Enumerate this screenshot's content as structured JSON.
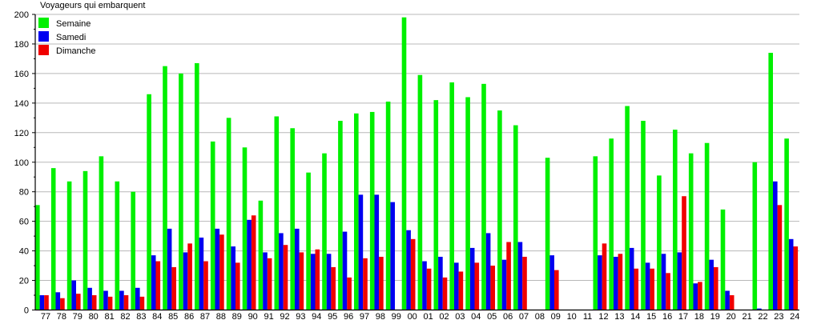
{
  "chart_data": {
    "type": "bar",
    "title": "Voyageurs qui embarquent",
    "xlabel": "",
    "ylabel": "",
    "ylim": [
      0,
      200
    ],
    "yticks": [
      0,
      20,
      40,
      60,
      80,
      100,
      120,
      140,
      160,
      180,
      200
    ],
    "grid": true,
    "legend_position": "top-left",
    "categories": [
      "77",
      "78",
      "79",
      "80",
      "81",
      "82",
      "83",
      "84",
      "85",
      "86",
      "87",
      "88",
      "89",
      "90",
      "91",
      "92",
      "93",
      "94",
      "95",
      "96",
      "97",
      "98",
      "99",
      "00",
      "01",
      "02",
      "03",
      "04",
      "05",
      "06",
      "07",
      "08",
      "09",
      "10",
      "11",
      "12",
      "13",
      "14",
      "15",
      "16",
      "17",
      "18",
      "19",
      "20",
      "21",
      "22",
      "23",
      "24"
    ],
    "series": [
      {
        "name": "Semaine",
        "color": "#00f000",
        "values": [
          71,
          96,
          87,
          94,
          104,
          87,
          80,
          146,
          165,
          160,
          167,
          114,
          130,
          110,
          74,
          131,
          123,
          93,
          106,
          128,
          133,
          134,
          141,
          198,
          159,
          142,
          154,
          144,
          153,
          135,
          125,
          0,
          103,
          0,
          0,
          104,
          116,
          138,
          128,
          91,
          122,
          106,
          113,
          68,
          0,
          100,
          174,
          116
        ]
      },
      {
        "name": "Samedi",
        "color": "#0000f0",
        "values": [
          10,
          12,
          20,
          15,
          13,
          13,
          15,
          37,
          55,
          39,
          49,
          55,
          43,
          61,
          39,
          52,
          55,
          38,
          38,
          53,
          78,
          78,
          73,
          54,
          33,
          36,
          32,
          42,
          52,
          34,
          46,
          0,
          37,
          0,
          0,
          37,
          36,
          42,
          32,
          38,
          39,
          18,
          34,
          13,
          0,
          1,
          87,
          48
        ]
      },
      {
        "name": "Dimanche",
        "color": "#f00000",
        "values": [
          10,
          8,
          11,
          10,
          9,
          10,
          9,
          33,
          29,
          45,
          33,
          51,
          32,
          64,
          35,
          44,
          39,
          41,
          29,
          22,
          35,
          36,
          0,
          48,
          28,
          22,
          26,
          32,
          30,
          46,
          36,
          0,
          27,
          0,
          0,
          45,
          38,
          28,
          28,
          25,
          77,
          19,
          29,
          10,
          0,
          0,
          71,
          43
        ]
      }
    ]
  }
}
